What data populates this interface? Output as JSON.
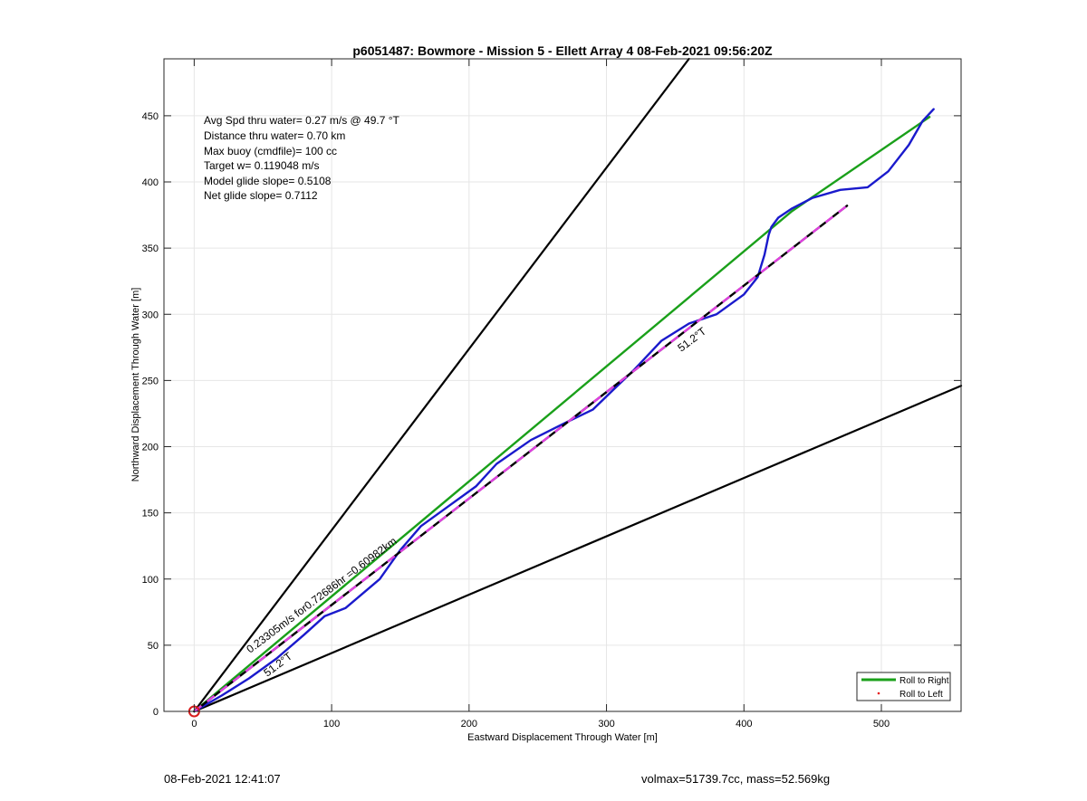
{
  "footer": {
    "timestamp": "08-Feb-2021 12:41:07",
    "volmax_mass": "volmax=51739.7cc, mass=52.569kg"
  },
  "chart_data": {
    "type": "line",
    "title": "p6051487: Bowmore - Mission 5 - Ellett Array 4 08-Feb-2021 09:56:20Z",
    "xlabel": "Eastward Displacement Through Water [m]",
    "ylabel": "Northward Displacement Through Water [m]",
    "xlim": [
      -22,
      558
    ],
    "ylim": [
      0,
      493
    ],
    "xticks": [
      0,
      100,
      200,
      300,
      400,
      500
    ],
    "yticks": [
      0,
      50,
      100,
      150,
      200,
      250,
      300,
      350,
      400,
      450
    ],
    "grid": true,
    "info_lines": [
      "Avg Spd thru water=  0.27 m/s @  49.7 °T",
      "Distance thru water=  0.70 km",
      "Max buoy (cmdfile)= 100 cc",
      "Target w= 0.119048 m/s",
      "Model glide slope= 0.5108",
      "Net glide slope= 0.7112"
    ],
    "annotations": {
      "along_track": "0.23305m/s for0.72686hr =0.60982km",
      "heading_lower": "51.2°T",
      "heading_upper": "51.2°T"
    },
    "legend": {
      "position": "bottom-right",
      "entries": [
        "Roll to Right",
        "Roll to Left"
      ]
    },
    "colors": {
      "track": "#1a1acc",
      "roll_right": "#1aa01a",
      "roll_left": "#e81a1a",
      "dashed_black": "#000000",
      "dashed_magenta": "#e040e0",
      "cone": "#000000",
      "start_marker": "#d81c1c"
    },
    "series": [
      {
        "name": "Roll to Right",
        "x": [
          0,
          435,
          535
        ],
        "y": [
          0,
          378,
          449
        ]
      },
      {
        "x": [
          0,
          20,
          40,
          60,
          80,
          95,
          110,
          135,
          150,
          165,
          185,
          205,
          220,
          245,
          270,
          290,
          305,
          320,
          340,
          360,
          380,
          400,
          410,
          415,
          418,
          420,
          425,
          435,
          450,
          470,
          490,
          505,
          520,
          530,
          538
        ],
        "y": [
          0,
          12,
          25,
          40,
          58,
          72,
          78,
          100,
          122,
          140,
          155,
          170,
          187,
          205,
          218,
          228,
          243,
          258,
          280,
          293,
          300,
          315,
          328,
          345,
          360,
          366,
          373,
          380,
          388,
          394,
          396,
          408,
          428,
          446,
          455
        ]
      },
      {
        "x": [
          0,
          475
        ],
        "y": [
          0,
          382
        ]
      },
      {
        "x": [
          0,
          360
        ],
        "y": [
          0,
          493
        ]
      },
      {
        "x": [
          0,
          558
        ],
        "y": [
          0,
          246
        ]
      }
    ]
  }
}
